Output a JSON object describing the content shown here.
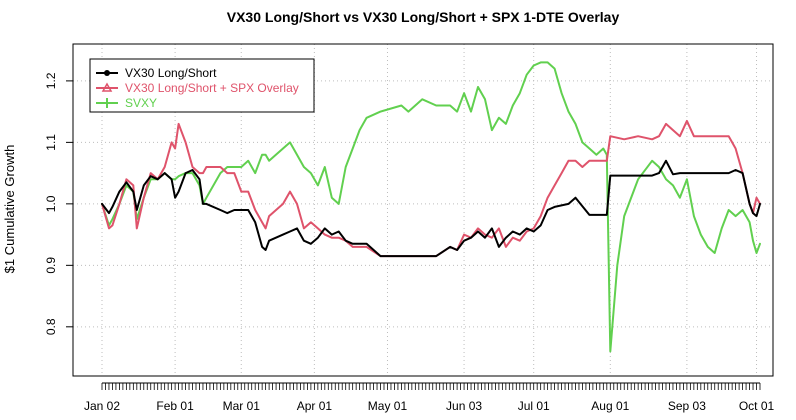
{
  "chart_data": {
    "type": "line",
    "title": "VX30 Long/Short vs VX30 Long/Short + SPX 1-DTE Overlay",
    "xlabel": "",
    "ylabel": "$1 Cumulative Growth",
    "ylim": [
      0.72,
      1.26
    ],
    "grid": true,
    "legend_position": "top-left",
    "x_tick_labels": [
      "Jan 02",
      "Feb 01",
      "Mar 01",
      "Apr 01",
      "May 01",
      "Jun 03",
      "Jul 01",
      "Aug 01",
      "Sep 03",
      "Oct 01"
    ],
    "y_ticks": [
      0.8,
      0.9,
      1.0,
      1.1,
      1.2
    ],
    "y_tick_labels": [
      "0.8",
      "0.9",
      "1.0",
      "1.1",
      "1.2"
    ],
    "x_axis_note": "trading days from Jan 02 (day 0) to early Oct (day 189); month ticks at days 0,21,40,61,82,104,124,146,168,188",
    "series": [
      {
        "name": "VX30 Long/Short",
        "color": "#000000",
        "marker": "dot",
        "x": [
          0,
          2,
          3,
          5,
          7,
          9,
          10,
          12,
          14,
          16,
          18,
          20,
          21,
          22,
          24,
          26,
          28,
          29,
          30,
          34,
          36,
          38,
          40,
          42,
          44,
          46,
          47,
          48,
          52,
          54,
          56,
          58,
          60,
          62,
          64,
          66,
          68,
          70,
          72,
          74,
          76,
          80,
          86,
          88,
          92,
          96,
          100,
          102,
          104,
          106,
          108,
          110,
          112,
          114,
          116,
          118,
          120,
          122,
          124,
          126,
          128,
          130,
          134,
          136,
          140,
          144,
          145,
          146,
          150,
          154,
          158,
          160,
          162,
          164,
          166,
          168,
          170,
          172,
          174,
          176,
          178,
          180,
          182,
          184,
          186,
          187,
          188,
          189
        ],
        "values": [
          1.0,
          0.985,
          0.995,
          1.02,
          1.035,
          1.02,
          0.99,
          1.03,
          1.045,
          1.04,
          1.05,
          1.04,
          1.01,
          1.02,
          1.05,
          1.055,
          1.04,
          1.0,
          1.0,
          0.99,
          0.985,
          0.99,
          0.99,
          0.99,
          0.97,
          0.93,
          0.925,
          0.94,
          0.95,
          0.955,
          0.96,
          0.94,
          0.935,
          0.945,
          0.96,
          0.95,
          0.955,
          0.94,
          0.935,
          0.935,
          0.935,
          0.915,
          0.915,
          0.915,
          0.915,
          0.915,
          0.93,
          0.925,
          0.94,
          0.945,
          0.955,
          0.945,
          0.96,
          0.93,
          0.945,
          0.955,
          0.95,
          0.96,
          0.955,
          0.965,
          0.99,
          0.995,
          1.0,
          1.01,
          0.982,
          0.982,
          0.982,
          1.046,
          1.046,
          1.046,
          1.046,
          1.05,
          1.07,
          1.048,
          1.05,
          1.05,
          1.05,
          1.05,
          1.05,
          1.05,
          1.05,
          1.05,
          1.055,
          1.05,
          1.0,
          0.985,
          0.98,
          1.0
        ]
      },
      {
        "name": "VX30 Long/Short + SPX Overlay",
        "color": "#df536b",
        "marker": "triangle",
        "x": [
          0,
          2,
          3,
          5,
          7,
          9,
          10,
          12,
          14,
          16,
          18,
          20,
          21,
          22,
          24,
          26,
          28,
          29,
          30,
          34,
          36,
          38,
          40,
          42,
          44,
          46,
          47,
          48,
          52,
          54,
          56,
          58,
          60,
          62,
          64,
          66,
          68,
          70,
          72,
          74,
          76,
          80,
          86,
          88,
          92,
          96,
          100,
          102,
          104,
          106,
          108,
          110,
          112,
          114,
          116,
          118,
          120,
          122,
          124,
          126,
          128,
          130,
          132,
          134,
          136,
          138,
          140,
          142,
          144,
          145,
          146,
          150,
          154,
          158,
          160,
          162,
          164,
          166,
          168,
          170,
          172,
          174,
          176,
          178,
          180,
          182,
          184,
          186,
          187,
          188,
          189
        ],
        "values": [
          1.0,
          0.96,
          0.965,
          1.0,
          1.04,
          1.03,
          0.96,
          1.01,
          1.05,
          1.04,
          1.06,
          1.1,
          1.09,
          1.13,
          1.1,
          1.06,
          1.05,
          1.05,
          1.06,
          1.06,
          1.05,
          1.05,
          1.02,
          1.02,
          0.99,
          0.97,
          0.96,
          0.98,
          1.0,
          1.02,
          1.0,
          0.96,
          0.97,
          0.96,
          0.95,
          0.945,
          0.945,
          0.94,
          0.93,
          0.93,
          0.93,
          0.915,
          0.915,
          0.915,
          0.915,
          0.915,
          0.93,
          0.925,
          0.95,
          0.945,
          0.96,
          0.95,
          0.945,
          0.96,
          0.93,
          0.945,
          0.94,
          0.955,
          0.96,
          0.98,
          1.01,
          1.03,
          1.05,
          1.07,
          1.07,
          1.06,
          1.07,
          1.07,
          1.07,
          1.07,
          1.11,
          1.105,
          1.11,
          1.105,
          1.11,
          1.13,
          1.12,
          1.11,
          1.135,
          1.11,
          1.11,
          1.11,
          1.11,
          1.11,
          1.11,
          1.09,
          1.05,
          1.0,
          0.985,
          1.01,
          1.0
        ]
      },
      {
        "name": "SVXY",
        "color": "#61d04f",
        "marker": "plus",
        "x": [
          0,
          2,
          3,
          5,
          7,
          9,
          10,
          12,
          14,
          16,
          18,
          20,
          21,
          22,
          24,
          26,
          28,
          29,
          30,
          34,
          36,
          38,
          40,
          42,
          44,
          46,
          47,
          48,
          52,
          54,
          56,
          58,
          60,
          62,
          64,
          66,
          68,
          70,
          72,
          74,
          76,
          80,
          86,
          88,
          92,
          96,
          100,
          102,
          104,
          106,
          108,
          110,
          112,
          114,
          116,
          118,
          120,
          122,
          124,
          126,
          128,
          130,
          132,
          134,
          136,
          138,
          140,
          142,
          144,
          145,
          146,
          147,
          148,
          150,
          154,
          158,
          160,
          162,
          164,
          166,
          168,
          170,
          172,
          174,
          176,
          178,
          180,
          182,
          184,
          186,
          187,
          188,
          189
        ],
        "values": [
          1.0,
          0.965,
          0.975,
          1.0,
          1.03,
          1.02,
          0.975,
          1.01,
          1.04,
          1.04,
          1.05,
          1.04,
          1.04,
          1.045,
          1.05,
          1.05,
          1.03,
          1.0,
          1.01,
          1.05,
          1.06,
          1.06,
          1.06,
          1.07,
          1.05,
          1.08,
          1.08,
          1.07,
          1.09,
          1.1,
          1.08,
          1.06,
          1.05,
          1.03,
          1.06,
          1.01,
          1.0,
          1.06,
          1.09,
          1.12,
          1.14,
          1.15,
          1.16,
          1.15,
          1.17,
          1.16,
          1.16,
          1.15,
          1.18,
          1.15,
          1.19,
          1.17,
          1.12,
          1.14,
          1.13,
          1.16,
          1.18,
          1.21,
          1.225,
          1.23,
          1.23,
          1.22,
          1.18,
          1.15,
          1.13,
          1.1,
          1.09,
          1.08,
          1.09,
          1.08,
          0.76,
          0.83,
          0.9,
          0.98,
          1.04,
          1.07,
          1.06,
          1.04,
          1.03,
          1.01,
          1.04,
          0.98,
          0.95,
          0.93,
          0.92,
          0.96,
          0.99,
          0.98,
          0.99,
          0.97,
          0.94,
          0.92,
          0.935
        ]
      }
    ]
  }
}
